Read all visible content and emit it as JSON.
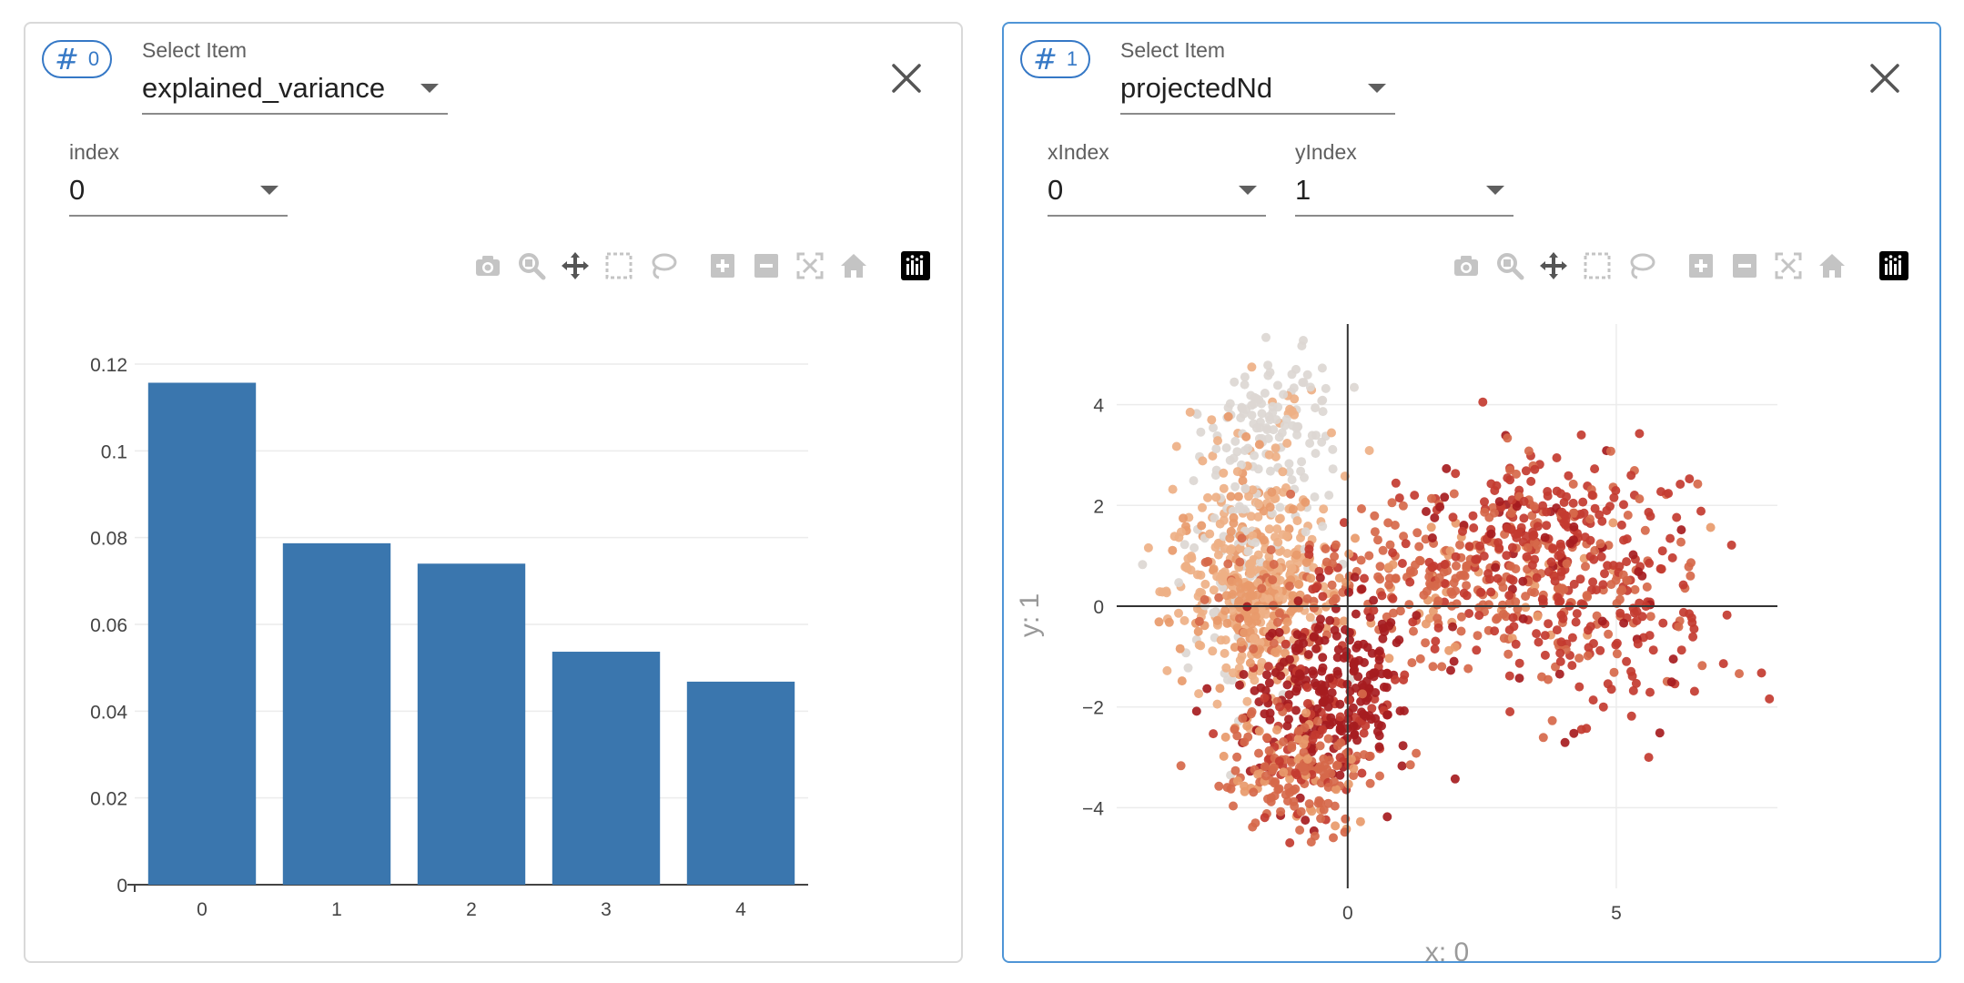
{
  "panels": [
    {
      "badge": {
        "hash": "#",
        "number": "0"
      },
      "select_item": {
        "label": "Select Item",
        "value": "explained_variance"
      },
      "index": {
        "label": "index",
        "value": "0"
      },
      "toolbar": [
        "camera-icon",
        "zoom-icon",
        "pan-icon",
        "box-select-icon",
        "lasso-select-icon",
        "zoom-in-icon",
        "zoom-out-icon",
        "autoscale-icon",
        "reset-axes-icon",
        "plotly-logo-icon"
      ]
    },
    {
      "badge": {
        "hash": "#",
        "number": "1"
      },
      "select_item": {
        "label": "Select Item",
        "value": "projectedNd"
      },
      "x_index": {
        "label": "xIndex",
        "value": "0"
      },
      "y_index": {
        "label": "yIndex",
        "value": "1"
      },
      "toolbar": [
        "camera-icon",
        "zoom-icon",
        "pan-icon",
        "box-select-icon",
        "lasso-select-icon",
        "zoom-in-icon",
        "zoom-out-icon",
        "autoscale-icon",
        "reset-axes-icon",
        "plotly-logo-icon"
      ]
    }
  ],
  "colors": {
    "accent": "#3578c6",
    "active_border": "#4f95d6",
    "bar": "#3a76ae",
    "scatter_palette": [
      "#dcd7d3",
      "#eeb085",
      "#e89a6b",
      "#d6684a",
      "#c33b30",
      "#a61c20"
    ]
  },
  "chart_data": [
    {
      "type": "bar",
      "categories": [
        "0",
        "1",
        "2",
        "3",
        "4"
      ],
      "values": [
        0.1157,
        0.0787,
        0.074,
        0.0537,
        0.0468
      ],
      "ylim": [
        0,
        0.12
      ],
      "yticks": [
        "0",
        "0.02",
        "0.04",
        "0.06",
        "0.08",
        "0.1",
        "0.12"
      ],
      "grid": true
    },
    {
      "type": "scatter",
      "xlabel": "x: 0",
      "ylabel": "y: 1",
      "xlim": [
        -4.3,
        8.0
      ],
      "ylim": [
        -5.6,
        5.6
      ],
      "xticks": [
        "0",
        "5"
      ],
      "yticks": [
        "−4",
        "−2",
        "0",
        "2",
        "4"
      ],
      "grid": true,
      "n_points": 1900,
      "clusters": [
        {
          "center": [
            -1.4,
            3.6
          ],
          "spread": [
            0.65,
            0.7
          ],
          "share": 0.07,
          "color_idx": 0
        },
        {
          "center": [
            -1.8,
            0.7
          ],
          "spread": [
            0.75,
            1.05
          ],
          "share": 0.22,
          "color_idx": 1
        },
        {
          "center": [
            -1.6,
            -0.2
          ],
          "spread": [
            0.55,
            0.7
          ],
          "share": 0.08,
          "color_idx": 2
        },
        {
          "center": [
            1.8,
            0.5
          ],
          "spread": [
            1.6,
            0.75
          ],
          "share": 0.15,
          "color_idx": 3
        },
        {
          "center": [
            4.5,
            0.2
          ],
          "spread": [
            1.4,
            1.2
          ],
          "share": 0.14,
          "color_idx": 4
        },
        {
          "center": [
            3.5,
            1.8
          ],
          "spread": [
            1.1,
            0.6
          ],
          "share": 0.08,
          "color_idx": 4
        },
        {
          "center": [
            -0.3,
            -1.8
          ],
          "spread": [
            0.8,
            0.9
          ],
          "share": 0.16,
          "color_idx": 5
        },
        {
          "center": [
            -1.0,
            -3.3
          ],
          "spread": [
            0.7,
            0.6
          ],
          "share": 0.1,
          "color_idx": 3
        }
      ]
    }
  ]
}
